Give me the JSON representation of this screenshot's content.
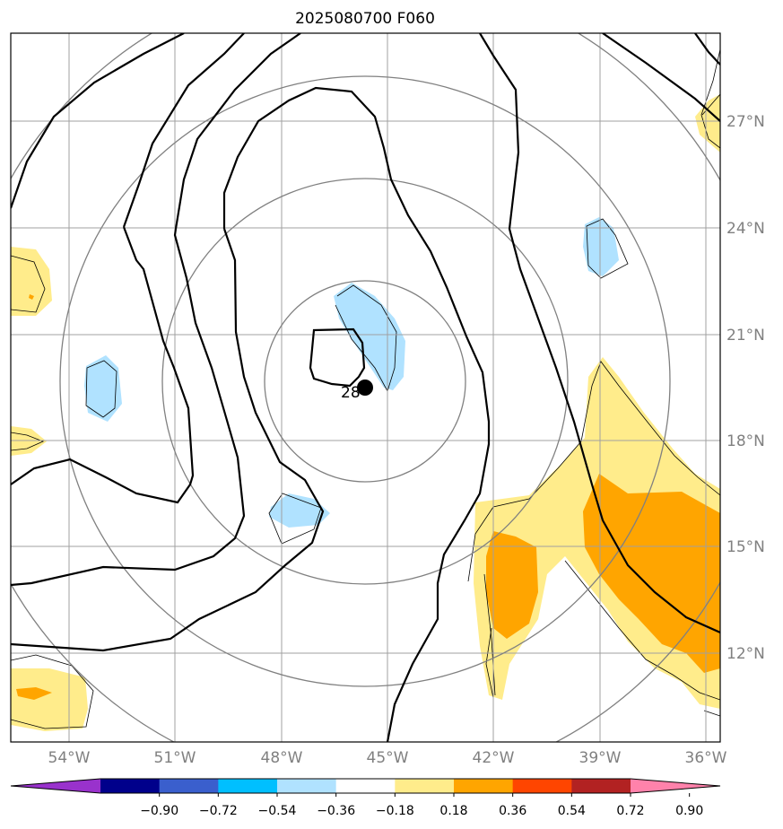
{
  "title": "2025080700 F060",
  "map": {
    "lon_labels": [
      "54°W",
      "51°W",
      "48°W",
      "45°W",
      "42°W",
      "39°W",
      "36°W"
    ],
    "lat_labels": [
      "27°N",
      "24°N",
      "21°N",
      "18°N",
      "15°N",
      "12°N"
    ],
    "contour_label": "28",
    "center_marker": "storm-center"
  },
  "colorbar": {
    "labels": [
      "−0.90",
      "−0.72",
      "−0.54",
      "−0.36",
      "−0.18",
      "0.18",
      "0.36",
      "0.54",
      "0.72",
      "0.90"
    ],
    "colors": [
      "#9932cc",
      "#00008b",
      "#3a5fcd",
      "#00bfff",
      "#b0e2ff",
      "#ffffff",
      "#ffec8b",
      "#ffa500",
      "#ff4500",
      "#b22222",
      "#ff82ab"
    ]
  },
  "colors": {
    "light_blue": "#b0e2ff",
    "light_yellow": "#ffec8b",
    "orange": "#ffa500",
    "grid": "#a0a0a0",
    "range_rings": "#808080"
  }
}
